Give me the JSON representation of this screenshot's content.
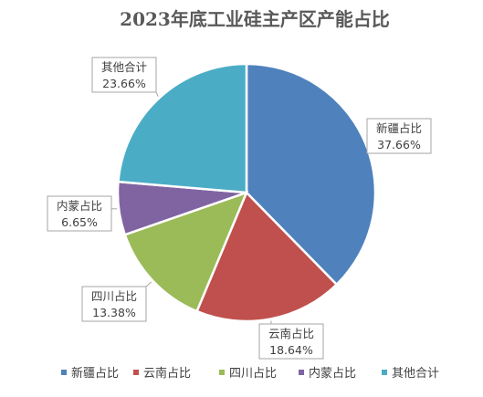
{
  "chart_data": {
    "type": "pie",
    "title": "2023年底工业硅主产区产能占比",
    "slices": [
      {
        "name": "新疆占比",
        "value": 37.66,
        "label": "37.66%",
        "color": "#4F81BD"
      },
      {
        "name": "云南占比",
        "value": 18.64,
        "label": "18.64%",
        "color": "#C0504D"
      },
      {
        "name": "四川占比",
        "value": 13.38,
        "label": "13.38%",
        "color": "#9BBB59"
      },
      {
        "name": "内蒙占比",
        "value": 6.65,
        "label": "6.65%",
        "color": "#8064A2"
      },
      {
        "name": "其他合计",
        "value": 23.66,
        "label": "23.66%",
        "color": "#4BACC6"
      }
    ],
    "legend_position": "bottom",
    "data_labels": "callout boxes with leader lines"
  }
}
